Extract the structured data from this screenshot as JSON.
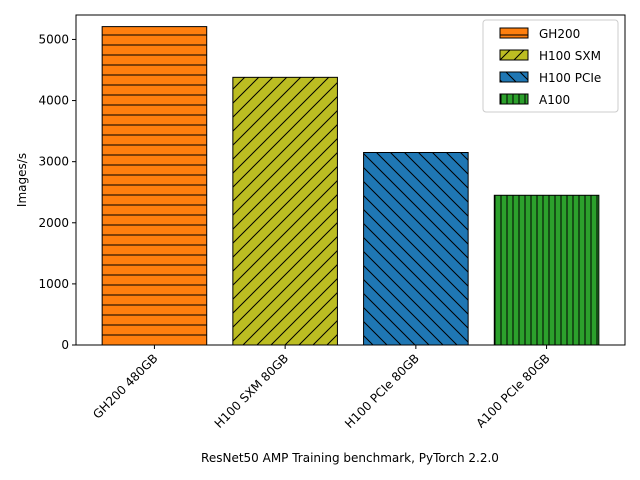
{
  "chart_data": {
    "type": "bar",
    "title": "",
    "xlabel": "ResNet50 AMP Training benchmark, PyTorch 2.2.0",
    "ylabel": "Images/s",
    "ylim": [
      0,
      5400
    ],
    "yticks": [
      0,
      1000,
      2000,
      3000,
      4000,
      5000
    ],
    "grid": false,
    "legend_position": "top-right",
    "categories": [
      "GH200 480GB",
      "H100 SXM 80GB",
      "H100 PCIe 80GB",
      "A100 PCIe 80GB"
    ],
    "series": [
      {
        "name": "GH200",
        "category": "GH200 480GB",
        "value": 5210,
        "color": "#ff7f0e",
        "hatch": "horizontal"
      },
      {
        "name": "H100 SXM",
        "category": "H100 SXM 80GB",
        "value": 4380,
        "color": "#bcbd22",
        "hatch": "forward-diagonal"
      },
      {
        "name": "H100 PCIe",
        "category": "H100 PCIe 80GB",
        "value": 3150,
        "color": "#1f77b4",
        "hatch": "back-diagonal"
      },
      {
        "name": "A100",
        "category": "A100 PCIe 80GB",
        "value": 2450,
        "color": "#2ca02c",
        "hatch": "vertical"
      }
    ]
  }
}
